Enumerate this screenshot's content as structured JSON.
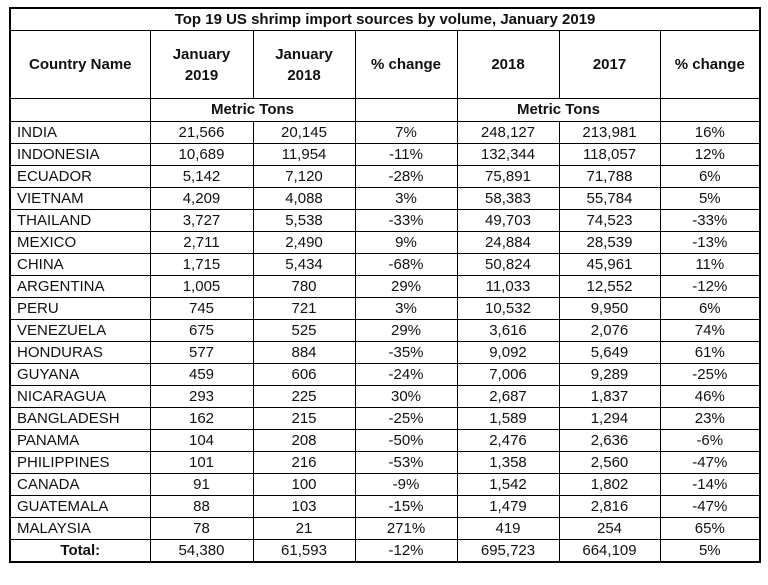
{
  "title": "Top 19 US shrimp import sources by volume, January 2019",
  "table": {
    "country_header": "Country Name",
    "columns": [
      "January\n2019",
      "January\n2018",
      "% change",
      "2018",
      "2017",
      "% change"
    ],
    "metric_tons_left": "Metric Tons",
    "metric_tons_right": "Metric Tons",
    "rows": [
      {
        "country": "INDIA",
        "values": [
          "21,566",
          "20,145",
          "7%",
          "248,127",
          "213,981",
          "16%"
        ]
      },
      {
        "country": "INDONESIA",
        "values": [
          "10,689",
          "11,954",
          "-11%",
          "132,344",
          "118,057",
          "12%"
        ]
      },
      {
        "country": "ECUADOR",
        "values": [
          "5,142",
          "7,120",
          "-28%",
          "75,891",
          "71,788",
          "6%"
        ]
      },
      {
        "country": "VIETNAM",
        "values": [
          "4,209",
          "4,088",
          "3%",
          "58,383",
          "55,784",
          "5%"
        ]
      },
      {
        "country": "THAILAND",
        "values": [
          "3,727",
          "5,538",
          "-33%",
          "49,703",
          "74,523",
          "-33%"
        ]
      },
      {
        "country": "MEXICO",
        "values": [
          "2,711",
          "2,490",
          "9%",
          "24,884",
          "28,539",
          "-13%"
        ]
      },
      {
        "country": "CHINA",
        "values": [
          "1,715",
          "5,434",
          "-68%",
          "50,824",
          "45,961",
          "11%"
        ]
      },
      {
        "country": "ARGENTINA",
        "values": [
          "1,005",
          "780",
          "29%",
          "11,033",
          "12,552",
          "-12%"
        ]
      },
      {
        "country": "PERU",
        "values": [
          "745",
          "721",
          "3%",
          "10,532",
          "9,950",
          "6%"
        ]
      },
      {
        "country": "VENEZUELA",
        "values": [
          "675",
          "525",
          "29%",
          "3,616",
          "2,076",
          "74%"
        ]
      },
      {
        "country": "HONDURAS",
        "values": [
          "577",
          "884",
          "-35%",
          "9,092",
          "5,649",
          "61%"
        ]
      },
      {
        "country": "GUYANA",
        "values": [
          "459",
          "606",
          "-24%",
          "7,006",
          "9,289",
          "-25%"
        ]
      },
      {
        "country": "NICARAGUA",
        "values": [
          "293",
          "225",
          "30%",
          "2,687",
          "1,837",
          "46%"
        ]
      },
      {
        "country": "BANGLADESH",
        "values": [
          "162",
          "215",
          "-25%",
          "1,589",
          "1,294",
          "23%"
        ]
      },
      {
        "country": "PANAMA",
        "values": [
          "104",
          "208",
          "-50%",
          "2,476",
          "2,636",
          "-6%"
        ]
      },
      {
        "country": "PHILIPPINES",
        "values": [
          "101",
          "216",
          "-53%",
          "1,358",
          "2,560",
          "-47%"
        ]
      },
      {
        "country": "CANADA",
        "values": [
          "91",
          "100",
          "-9%",
          "1,542",
          "1,802",
          "-14%"
        ]
      },
      {
        "country": "GUATEMALA",
        "values": [
          "88",
          "103",
          "-15%",
          "1,479",
          "2,816",
          "-47%"
        ]
      },
      {
        "country": "MALAYSIA",
        "values": [
          "78",
          "21",
          "271%",
          "419",
          "254",
          "65%"
        ]
      }
    ],
    "total": {
      "label": "Total:",
      "values": [
        "54,380",
        "61,593",
        "-12%",
        "695,723",
        "664,109",
        "5%"
      ]
    }
  },
  "colors": {
    "border": "#000000",
    "text": "#111111",
    "background": "#ffffff"
  }
}
